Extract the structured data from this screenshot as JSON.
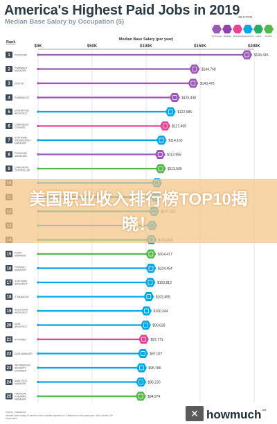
{
  "header": {
    "title": "America's Highest Paid Jobs in 2019",
    "subtitle": "Median Base Salary by Occupation ($)"
  },
  "legend": {
    "label": "SECTOR",
    "sectors": [
      {
        "name": "Technology",
        "color": "#9b59b6"
      },
      {
        "name": "Medical",
        "color": "#8e44ad"
      },
      {
        "name": "Business",
        "color": "#e84393"
      },
      {
        "name": "Engineering",
        "color": "#00a8e8"
      },
      {
        "name": "Legal",
        "color": "#27ae60"
      },
      {
        "name": "Finance",
        "color": "#55b84a"
      }
    ]
  },
  "banner": {
    "text": "美国职业收入排行榜TOP10揭晓！"
  },
  "footer": {
    "source": "Source: Glassdoor",
    "note": "Median base salary is derived from salaries reported on Glassdoor in the past year, with at least 100 responses.",
    "brand": "howmuch",
    "brand_suffix": ".net",
    "badge": "✕"
  },
  "chart_data": {
    "type": "bar",
    "title": "America's Highest Paid Jobs in 2019",
    "subtitle": "Median Base Salary by Occupation ($)",
    "xlabel": "Median Base Salary (per year)",
    "ylabel": "Rank",
    "xlim": [
      0,
      200000
    ],
    "x_ticks": [
      "$0K",
      "$50K",
      "$100K",
      "$150K",
      "$200K"
    ],
    "grid": true,
    "bars": [
      {
        "rank": 1,
        "job": "Physician",
        "value": 193415,
        "label": "$193,415",
        "color": "#9b59b6"
      },
      {
        "rank": 2,
        "job": "Pharmacy Manager",
        "value": 144768,
        "label": "$144,768",
        "color": "#9b59b6"
      },
      {
        "rank": 3,
        "job": "Dentist",
        "value": 143476,
        "label": "$143,476",
        "color": "#9b59b6"
      },
      {
        "rank": 4,
        "job": "Pharmacist",
        "value": 126438,
        "label": "$126,438",
        "color": "#9b59b6"
      },
      {
        "rank": 5,
        "job": "Enterprise Architect",
        "value": 122585,
        "label": "$122,585",
        "color": "#00a8e8"
      },
      {
        "rank": 6,
        "job": "Corporate Counsel",
        "value": 117499,
        "label": "$117,499",
        "color": "#e84393"
      },
      {
        "rank": 7,
        "job": "Software Engineering Manager",
        "value": 114163,
        "label": "$114,163",
        "color": "#00a8e8"
      },
      {
        "rank": 8,
        "job": "Physician Assistant",
        "value": 112955,
        "label": "$112,955",
        "color": "#9b59b6"
      },
      {
        "rank": 9,
        "job": "Corporate Controller",
        "value": 113500,
        "label": "$113,500",
        "color": "#55b84a"
      },
      {
        "rank": 10,
        "job": "",
        "value": 110000,
        "label": "",
        "color": "#00a8e8"
      },
      {
        "rank": 11,
        "job": "",
        "value": 109000,
        "label": "",
        "color": "#00a8e8"
      },
      {
        "rank": 12,
        "job": "",
        "value": 107333,
        "label": "$107,333",
        "color": "#00a8e8"
      },
      {
        "rank": 13,
        "job": "",
        "value": 105500,
        "label": "",
        "color": "#00a8e8"
      },
      {
        "rank": 14,
        "job": "",
        "value": 104840,
        "label": "$104,840",
        "color": "#00a8e8"
      },
      {
        "rank": 15,
        "job": "Plant Manager",
        "value": 104417,
        "label": "$104,417",
        "color": "#55b84a"
      },
      {
        "rank": 16,
        "job": "Product Manager",
        "value": 104454,
        "label": "$104,454",
        "color": "#00a8e8"
      },
      {
        "rank": 17,
        "job": "Software Architect",
        "value": 103813,
        "label": "$103,813",
        "color": "#00a8e8"
      },
      {
        "rank": 18,
        "job": "IT Manager",
        "value": 102455,
        "label": "$102,455",
        "color": "#00a8e8"
      },
      {
        "rank": 19,
        "job": "Solutions Architect",
        "value": 100344,
        "label": "$100,344",
        "color": "#00a8e8"
      },
      {
        "rank": 20,
        "job": "Data Architect",
        "value": 99628,
        "label": "$99,628",
        "color": "#00a8e8"
      },
      {
        "rank": 21,
        "job": "Attorney",
        "value": 97771,
        "label": "$97,771",
        "color": "#e84393"
      },
      {
        "rank": 22,
        "job": "Data Manager",
        "value": 97027,
        "label": "$97,027",
        "color": "#00a8e8"
      },
      {
        "rank": 23,
        "job": "Information Security Engineer",
        "value": 95786,
        "label": "$95,786",
        "color": "#00a8e8"
      },
      {
        "rank": 24,
        "job": "Analytics Manager",
        "value": 95230,
        "label": "$95,230",
        "color": "#00a8e8"
      },
      {
        "rank": 25,
        "job": "Financial Planning Manager",
        "value": 94974,
        "label": "$94,974",
        "color": "#55b84a"
      }
    ]
  }
}
